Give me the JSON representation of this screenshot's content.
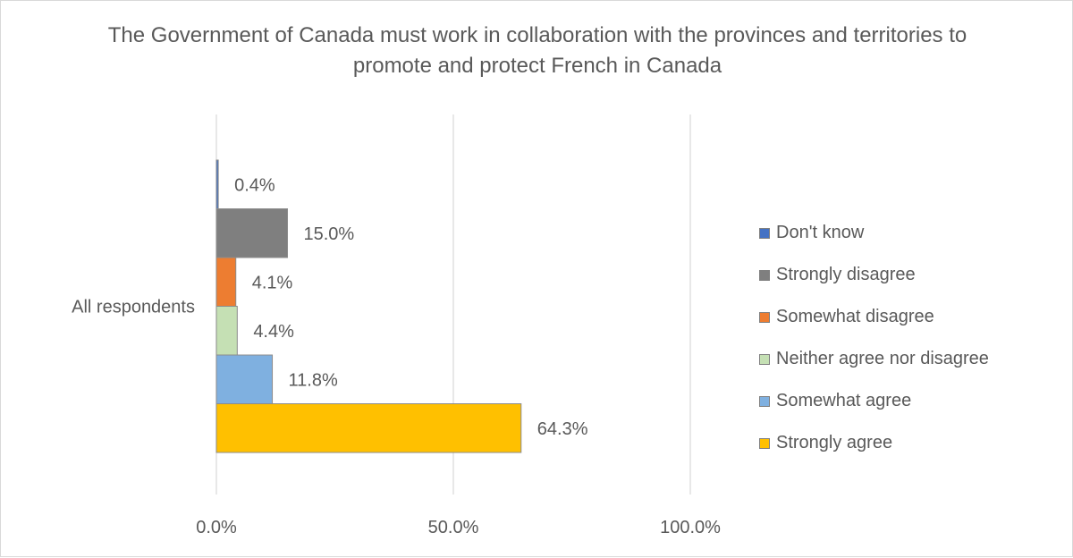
{
  "chart_data": {
    "type": "bar",
    "orientation": "horizontal",
    "title": "The Government of Canada must work in collaboration with the provinces and territories to promote and protect French in Canada",
    "categories": [
      "All respondents"
    ],
    "series": [
      {
        "name": "Don't know",
        "values": [
          0.4
        ],
        "label": "0.4%",
        "color": "#4472c4"
      },
      {
        "name": "Strongly disagree",
        "values": [
          15.0
        ],
        "label": "15.0%",
        "color": "#7f7f7f"
      },
      {
        "name": "Somewhat disagree",
        "values": [
          4.1
        ],
        "label": "4.1%",
        "color": "#ed7d31"
      },
      {
        "name": "Neither agree nor disagree",
        "values": [
          4.4
        ],
        "label": "4.4%",
        "color": "#c5e0b4"
      },
      {
        "name": "Somewhat agree",
        "values": [
          11.8
        ],
        "label": "11.8%",
        "color": "#7fb0e0"
      },
      {
        "name": "Strongly agree",
        "values": [
          64.3
        ],
        "label": "64.3%",
        "color": "#ffc000"
      }
    ],
    "xlim": [
      0,
      100
    ],
    "x_ticks": [
      {
        "value": 0,
        "label": "0.0%"
      },
      {
        "value": 50,
        "label": "50.0%"
      },
      {
        "value": 100,
        "label": "100.0%"
      }
    ],
    "grid": true,
    "legend_position": "right"
  }
}
